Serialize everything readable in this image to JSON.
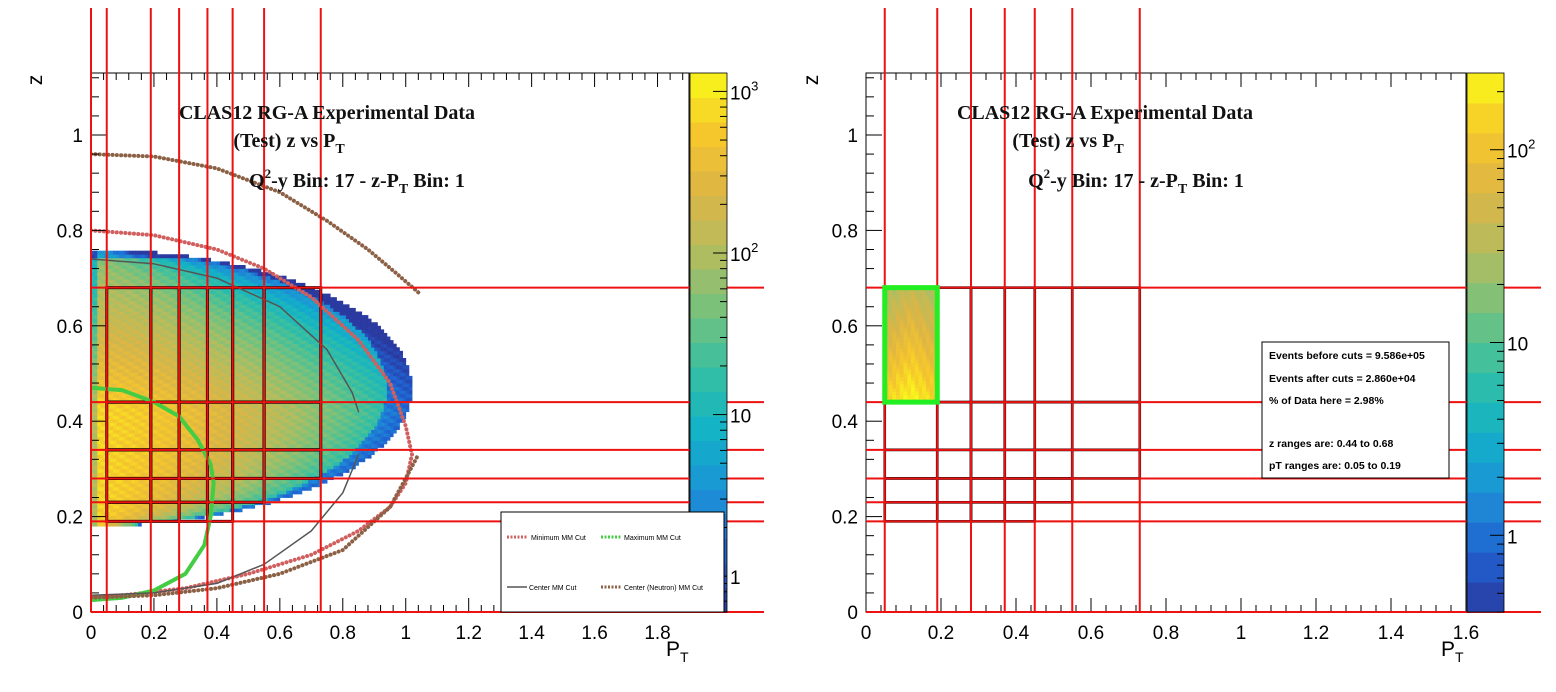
{
  "chart_data": [
    {
      "type": "heatmap",
      "title_lines": [
        {
          "text": "CLAS12 RG-A Experimental Data"
        },
        {
          "text": "(Test) z vs P",
          "sub": "T"
        },
        {
          "pre": "Q",
          "sup": "2",
          "mid": "-y Bin: 17 - z-P",
          "sub": "T",
          "post": " Bin: 1"
        }
      ],
      "xlabel": "P",
      "xlabel_sub": "T",
      "ylabel": "z",
      "xlim": [
        0,
        1.9
      ],
      "ylim": [
        0,
        1.13
      ],
      "xticks": [
        "0",
        "0.2",
        "0.4",
        "0.6",
        "0.8",
        "1",
        "1.2",
        "1.4",
        "1.6",
        "1.8"
      ],
      "yticks": [
        "0",
        "0.2",
        "0.4",
        "0.6",
        "0.8",
        "1"
      ],
      "colorbar": {
        "scale": "log",
        "range": [
          0.6,
          1300
        ],
        "labels": [
          {
            "v": 1,
            "t": "1"
          },
          {
            "v": 10,
            "t": "10"
          },
          {
            "v": 100,
            "t": "10",
            "sup": "2"
          },
          {
            "v": 1000,
            "t": "10",
            "sup": "3"
          }
        ]
      },
      "red_vlines": [
        0,
        0.05,
        0.19,
        0.28,
        0.37,
        0.45,
        0.55,
        0.73
      ],
      "red_hlines": [
        0.19,
        0.23,
        0.28,
        0.34,
        0.44,
        0.68
      ],
      "z_edges": [
        0.19,
        0.23,
        0.28,
        0.34,
        0.44,
        0.68
      ],
      "pt_edges": [
        [
          0.05,
          0.19,
          0.28,
          0.37,
          0.45
        ],
        [
          0.05,
          0.19,
          0.28,
          0.37,
          0.45,
          0.55
        ],
        [
          0.05,
          0.19,
          0.28,
          0.37,
          0.45,
          0.55,
          0.73
        ],
        [
          0.05,
          0.19,
          0.28,
          0.37,
          0.45,
          0.55,
          0.73
        ],
        [
          0.05,
          0.19,
          0.28,
          0.37,
          0.45,
          0.55,
          0.73
        ]
      ],
      "gray_bins": [
        [
          0.45,
          0.55,
          0.19,
          0.23
        ],
        [
          0.55,
          0.73,
          0.19,
          0.23
        ],
        [
          0.55,
          0.73,
          0.23,
          0.28
        ]
      ],
      "cut_curves": [
        {
          "name": "Minimum MM Cut",
          "color": "#d06060",
          "dotted": true,
          "points": [
            [
              0,
              0.8
            ],
            [
              0.2,
              0.79
            ],
            [
              0.4,
              0.76
            ],
            [
              0.55,
              0.72
            ],
            [
              0.7,
              0.66
            ],
            [
              0.85,
              0.57
            ],
            [
              0.95,
              0.48
            ],
            [
              1.0,
              0.39
            ],
            [
              1.02,
              0.33
            ],
            [
              1.0,
              0.27
            ],
            [
              0.95,
              0.22
            ],
            [
              0.85,
              0.17
            ],
            [
              0.7,
              0.12
            ],
            [
              0.5,
              0.08
            ],
            [
              0.3,
              0.05
            ],
            [
              0.1,
              0.035
            ],
            [
              0,
              0.03
            ]
          ]
        },
        {
          "name": "Maximum MM Cut",
          "color": "#44cc44",
          "dotted": false,
          "points": [
            [
              0,
              0.47
            ],
            [
              0.1,
              0.465
            ],
            [
              0.2,
              0.44
            ],
            [
              0.28,
              0.41
            ],
            [
              0.34,
              0.36
            ],
            [
              0.38,
              0.31
            ],
            [
              0.39,
              0.27
            ],
            [
              0.38,
              0.2
            ],
            [
              0.36,
              0.14
            ],
            [
              0.3,
              0.08
            ],
            [
              0.2,
              0.045
            ],
            [
              0.1,
              0.03
            ],
            [
              0,
              0.025
            ]
          ]
        },
        {
          "name": "Center MM Cut",
          "color": "#555555",
          "dotted": false,
          "points": [
            [
              0,
              0.74
            ],
            [
              0.2,
              0.73
            ],
            [
              0.4,
              0.7
            ],
            [
              0.6,
              0.64
            ],
            [
              0.75,
              0.55
            ],
            [
              0.83,
              0.46
            ],
            [
              0.85,
              0.42
            ]
          ],
          "points2": [
            [
              0,
              0.035
            ],
            [
              0.2,
              0.04
            ],
            [
              0.4,
              0.06
            ],
            [
              0.55,
              0.1
            ],
            [
              0.7,
              0.17
            ],
            [
              0.8,
              0.25
            ],
            [
              0.85,
              0.33
            ]
          ]
        },
        {
          "name": "Center (Neutron) MM Cut",
          "color": "#8b6045",
          "dotted": true,
          "points": [
            [
              0,
              0.96
            ],
            [
              0.2,
              0.955
            ],
            [
              0.4,
              0.93
            ],
            [
              0.6,
              0.88
            ],
            [
              0.75,
              0.82
            ],
            [
              0.88,
              0.76
            ],
            [
              0.97,
              0.71
            ],
            [
              1.04,
              0.67
            ]
          ],
          "points2": [
            [
              0,
              0.03
            ],
            [
              0.2,
              0.035
            ],
            [
              0.4,
              0.05
            ],
            [
              0.6,
              0.08
            ],
            [
              0.8,
              0.13
            ],
            [
              0.95,
              0.22
            ],
            [
              1.0,
              0.28
            ],
            [
              1.04,
              0.33
            ]
          ]
        }
      ]
    },
    {
      "type": "heatmap",
      "title_lines": [
        {
          "text": "CLAS12 RG-A Experimental Data"
        },
        {
          "text": "(Test) z vs P",
          "sub": "T"
        },
        {
          "pre": "Q",
          "sup": "2",
          "mid": "-y Bin: 17 - z-P",
          "sub": "T",
          "post": " Bin: 1"
        }
      ],
      "xlabel": "P",
      "xlabel_sub": "T",
      "ylabel": "z",
      "xlim": [
        0,
        1.6
      ],
      "ylim": [
        0,
        1.13
      ],
      "xticks": [
        "0",
        "0.2",
        "0.4",
        "0.6",
        "0.8",
        "1",
        "1.2",
        "1.4",
        "1.6"
      ],
      "yticks": [
        "0",
        "0.2",
        "0.4",
        "0.6",
        "0.8",
        "1"
      ],
      "colorbar": {
        "scale": "log",
        "range": [
          0.4,
          250
        ],
        "labels": [
          {
            "v": 1,
            "t": "1"
          },
          {
            "v": 10,
            "t": "10"
          },
          {
            "v": 100,
            "t": "10",
            "sup": "2"
          }
        ]
      },
      "red_vlines": [
        0.05,
        0.19,
        0.28,
        0.37,
        0.45,
        0.55,
        0.73
      ],
      "red_hlines": [
        0.19,
        0.23,
        0.28,
        0.34,
        0.44,
        0.68
      ],
      "selected_bin": {
        "pt": [
          0.05,
          0.19
        ],
        "z": [
          0.44,
          0.68
        ],
        "color": "#22ee22"
      },
      "stats": {
        "events_before": "Events before cuts = 9.586e+05",
        "events_after": "Events after cuts  = 2.860e+04",
        "percent": "% of Data here = 2.98%",
        "z_range": "z   ranges are: 0.44 to 0.68",
        "pt_range": "pT ranges are: 0.05 to 0.19"
      }
    }
  ]
}
